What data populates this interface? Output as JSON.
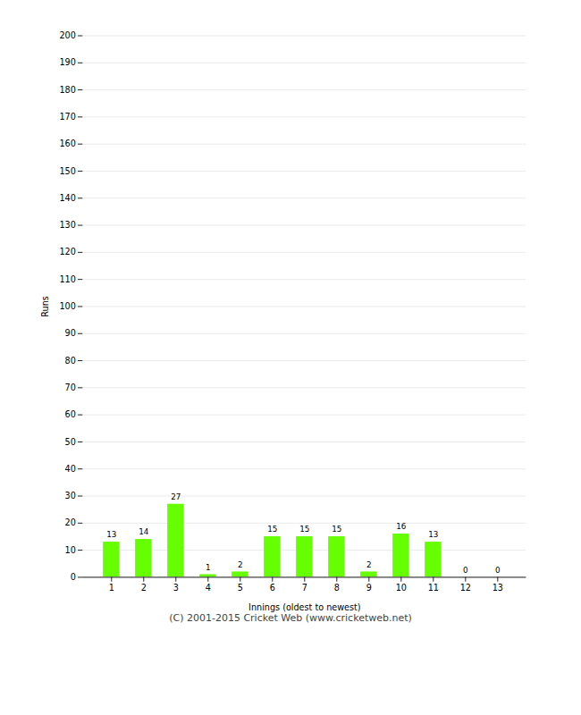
{
  "chart_data": {
    "type": "bar",
    "xlabel": "Innings (oldest to newest)",
    "ylabel": "Runs",
    "categories": [
      "1",
      "2",
      "3",
      "4",
      "5",
      "6",
      "7",
      "8",
      "9",
      "10",
      "11",
      "12",
      "13"
    ],
    "values": [
      13,
      14,
      27,
      1,
      2,
      15,
      15,
      15,
      2,
      16,
      13,
      0,
      0
    ],
    "color": "#66ff00",
    "ylim": [
      0,
      200
    ],
    "yticks": [
      0,
      10,
      20,
      30,
      40,
      50,
      60,
      70,
      80,
      90,
      100,
      110,
      120,
      130,
      140,
      150,
      160,
      170,
      180,
      190,
      200
    ],
    "grid": true,
    "data_labels": true,
    "caption": "(C) 2001-2015 Cricket Web (www.cricketweb.net)"
  }
}
